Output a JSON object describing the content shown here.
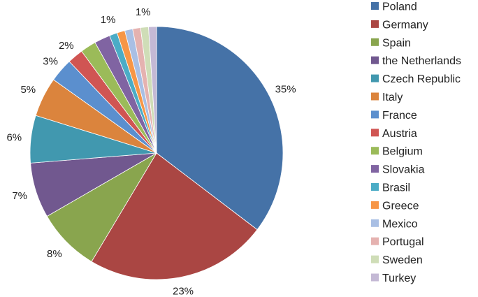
{
  "chart_data": {
    "type": "pie",
    "categories": [
      "Poland",
      "Germany",
      "Spain",
      "the Netherlands",
      "Czech Republic",
      "Italy",
      "France",
      "Austria",
      "Belgium",
      "Slovakia",
      "Brasil",
      "Greece",
      "Mexico",
      "Portugal",
      "Sweden",
      "Turkey"
    ],
    "values": [
      35,
      23,
      8,
      7,
      6,
      5,
      3,
      2,
      2,
      2,
      1,
      1,
      1,
      1,
      1,
      1
    ],
    "labels": [
      "35%",
      "23%",
      "8%",
      "7%",
      "6%",
      "5%",
      "3%",
      "2%",
      "",
      "",
      "1%",
      "",
      "",
      "",
      "1%",
      ""
    ],
    "colors": [
      "#4572A7",
      "#AA4643",
      "#89A54E",
      "#71588F",
      "#4198AF",
      "#DB843D",
      "#5B8FCE",
      "#D05553",
      "#9BBB59",
      "#8064A2",
      "#4BACC6",
      "#F79646",
      "#A9BFE4",
      "#E5B2B0",
      "#CFDDB7",
      "#C4B9D5"
    ],
    "legend_position": "right"
  }
}
